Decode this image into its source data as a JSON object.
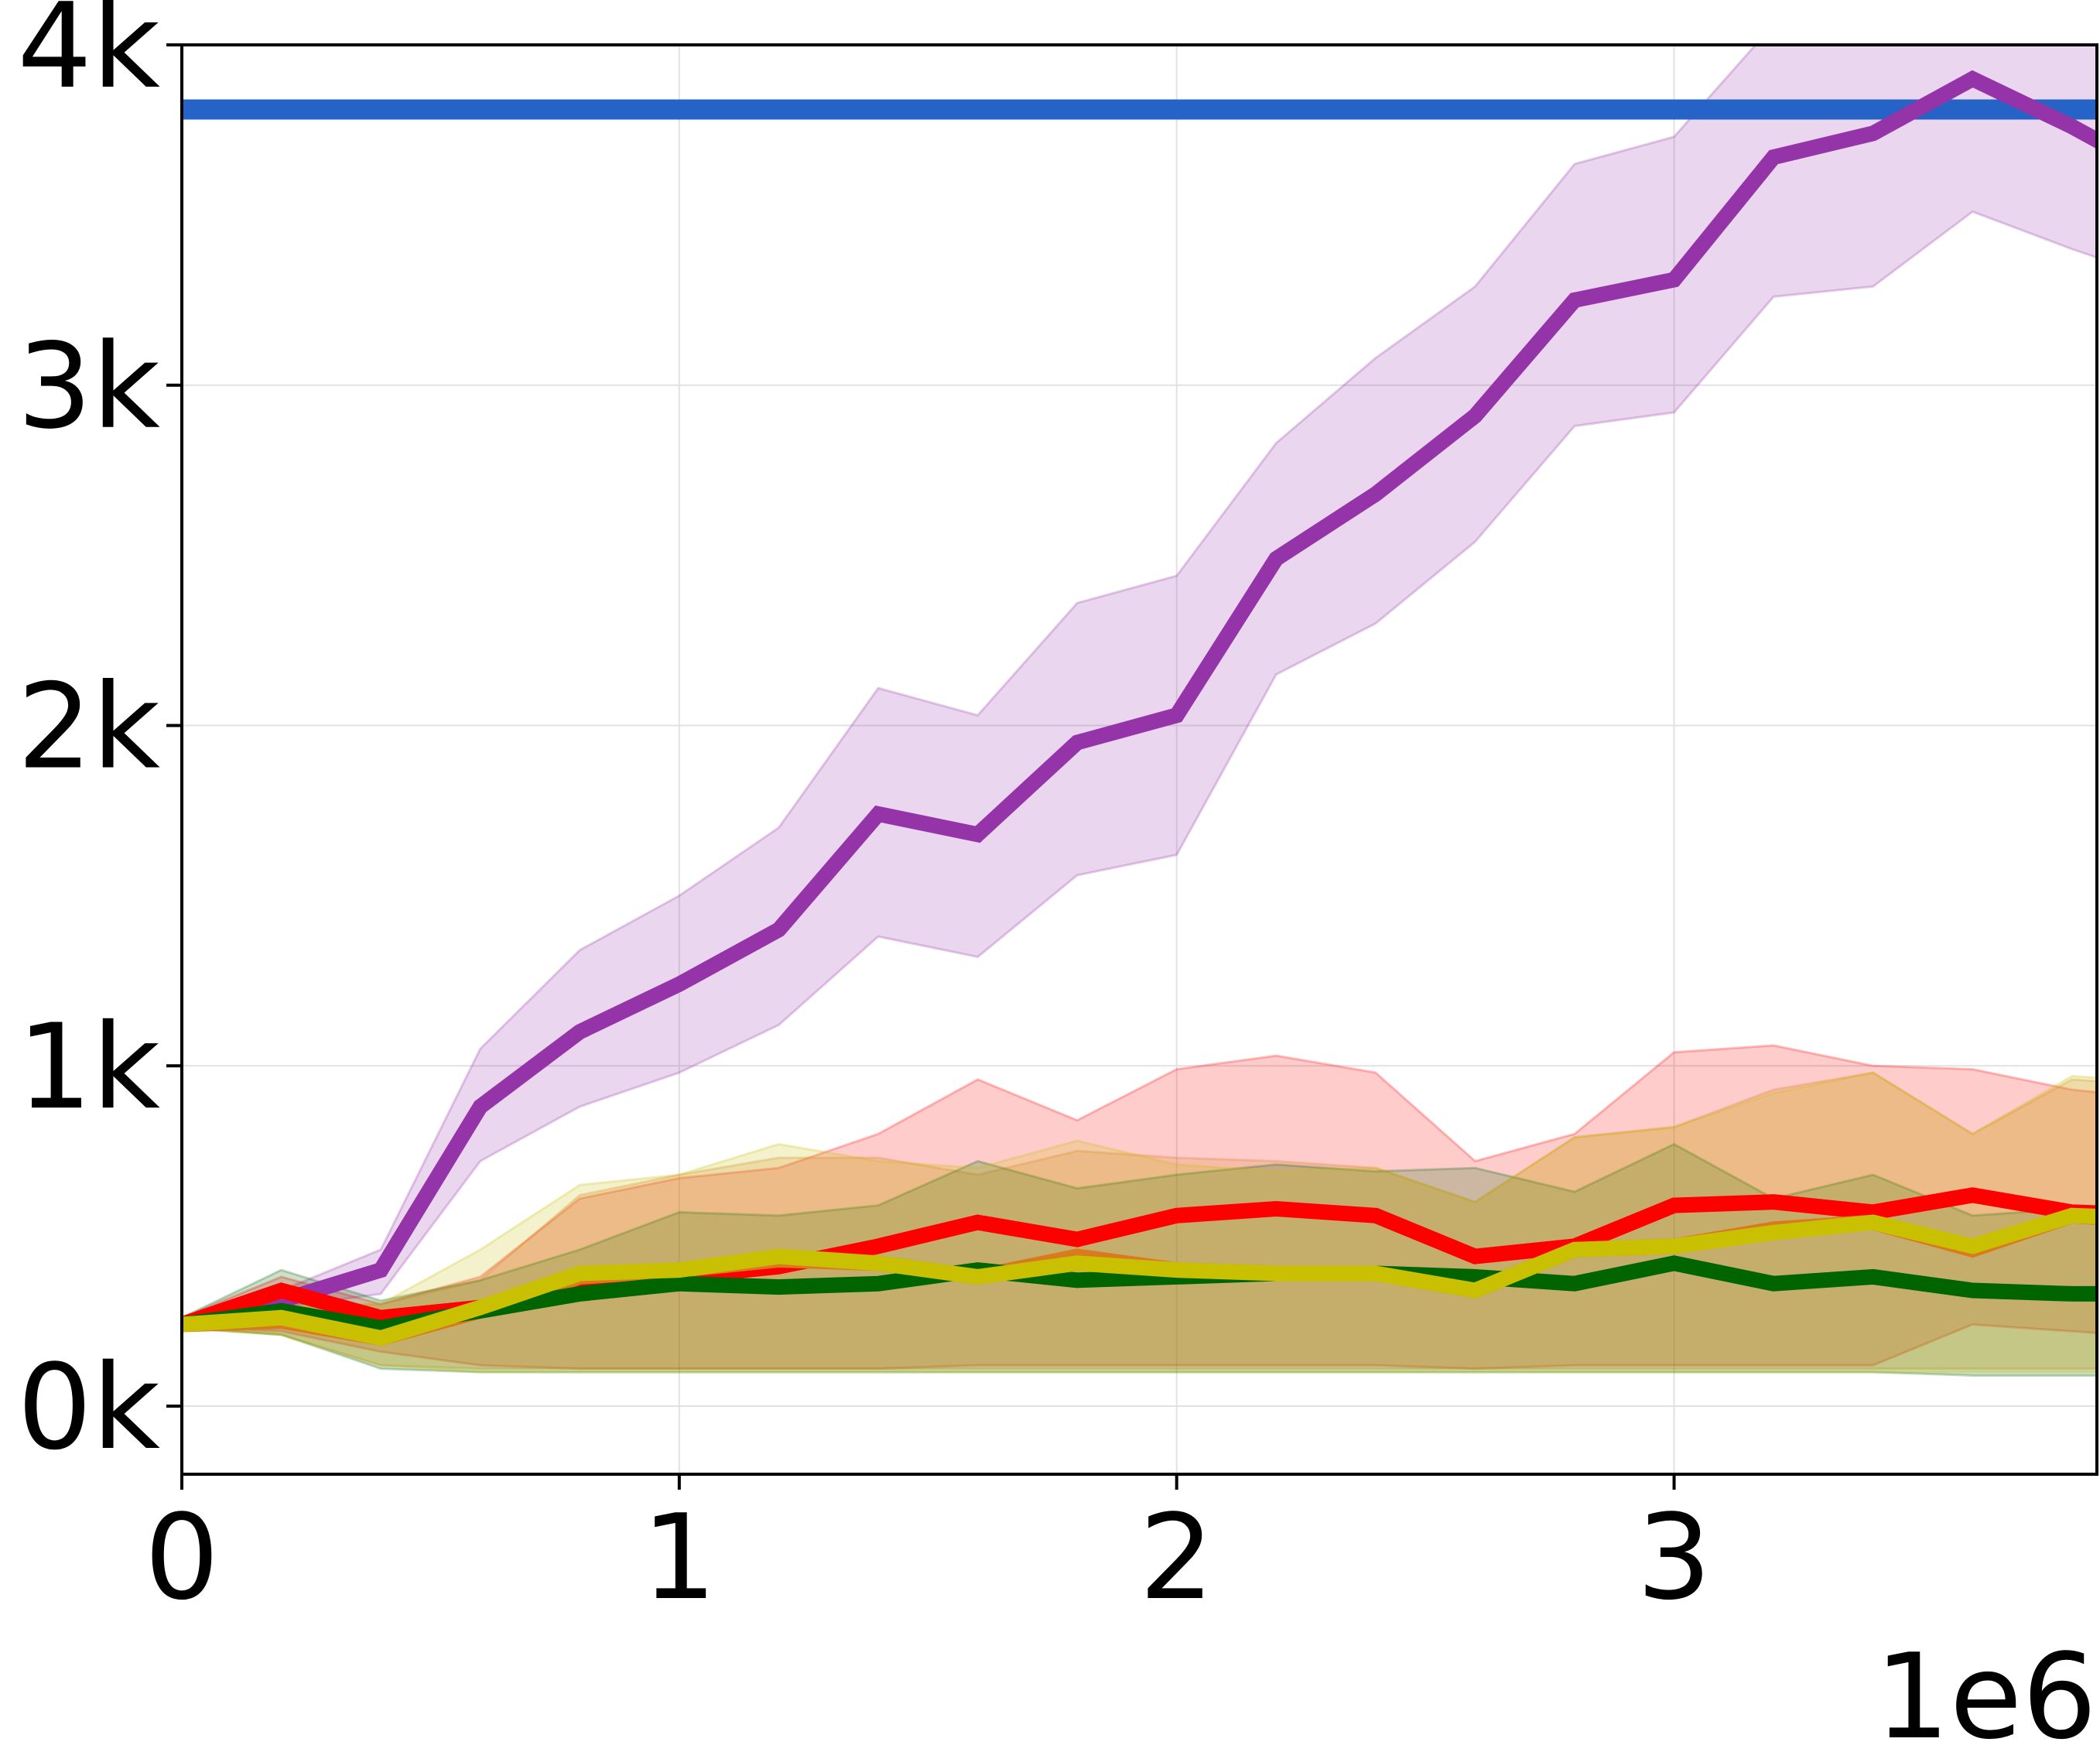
{
  "chart_data": {
    "type": "line",
    "title": "",
    "xlabel": "",
    "ylabel": "",
    "x_offset_label": "1e6",
    "xlim": [
      0,
      3.85
    ],
    "ylim": [
      -200,
      4000
    ],
    "grid": true,
    "x_ticks": [
      0,
      1,
      2,
      3
    ],
    "x_tick_labels": [
      "0",
      "1",
      "2",
      "3"
    ],
    "y_ticks": [
      0,
      1000,
      2000,
      3000,
      4000
    ],
    "y_tick_labels": [
      "0k",
      "1k",
      "2k",
      "3k",
      "4k"
    ],
    "x": [
      0,
      0.2,
      0.4,
      0.6,
      0.8,
      1.0,
      1.2,
      1.4,
      1.6,
      1.8,
      2.0,
      2.2,
      2.4,
      2.6,
      2.8,
      3.0,
      3.2,
      3.4,
      3.6,
      3.8,
      4.0
    ],
    "reference_line": {
      "y": 3810,
      "color": "#2563c7"
    },
    "series": [
      {
        "color": "#9533a8",
        "values": [
          240,
          310,
          400,
          880,
          1100,
          1240,
          1400,
          1740,
          1680,
          1950,
          2030,
          2490,
          2680,
          2910,
          3250,
          3310,
          3670,
          3740,
          3900,
          3760,
          3600
        ],
        "lower": [
          240,
          290,
          330,
          720,
          880,
          980,
          1120,
          1380,
          1320,
          1560,
          1620,
          2150,
          2300,
          2540,
          2880,
          2920,
          3260,
          3290,
          3510,
          3400,
          3300
        ],
        "upper": [
          250,
          340,
          460,
          1050,
          1340,
          1500,
          1700,
          2110,
          2030,
          2360,
          2440,
          2830,
          3080,
          3290,
          3650,
          3730,
          4060,
          4150,
          4320,
          4210,
          4100
        ]
      },
      {
        "color": "#ff0000",
        "values": [
          240,
          340,
          260,
          290,
          360,
          380,
          410,
          470,
          540,
          490,
          560,
          580,
          560,
          440,
          470,
          590,
          600,
          570,
          620,
          570,
          560
        ],
        "lower": [
          230,
          220,
          160,
          120,
          110,
          110,
          110,
          110,
          120,
          120,
          120,
          120,
          120,
          110,
          120,
          120,
          120,
          120,
          240,
          220,
          200
        ],
        "upper": [
          260,
          380,
          300,
          380,
          610,
          670,
          700,
          800,
          960,
          840,
          990,
          1030,
          980,
          720,
          800,
          1040,
          1060,
          1000,
          990,
          930,
          900
        ]
      },
      {
        "color": "#d97a1e",
        "values": [
          240,
          250,
          200,
          280,
          380,
          400,
          430,
          420,
          380,
          440,
          400,
          390,
          390,
          340,
          460,
          470,
          520,
          540,
          460,
          560,
          540
        ],
        "lower": [
          230,
          210,
          120,
          110,
          110,
          110,
          110,
          110,
          110,
          110,
          110,
          110,
          110,
          110,
          110,
          110,
          110,
          110,
          110,
          110,
          110
        ],
        "upper": [
          260,
          290,
          300,
          370,
          620,
          680,
          730,
          730,
          680,
          750,
          730,
          720,
          700,
          600,
          790,
          820,
          930,
          980,
          800,
          960,
          940
        ]
      },
      {
        "color": "#006400",
        "values": [
          240,
          280,
          230,
          280,
          330,
          360,
          350,
          360,
          400,
          370,
          380,
          390,
          390,
          380,
          360,
          420,
          360,
          380,
          340,
          330,
          330
        ],
        "lower": [
          230,
          210,
          110,
          100,
          100,
          100,
          100,
          100,
          100,
          100,
          100,
          100,
          100,
          100,
          100,
          100,
          100,
          100,
          90,
          90,
          90
        ],
        "upper": [
          260,
          400,
          310,
          370,
          460,
          570,
          560,
          590,
          720,
          640,
          680,
          710,
          690,
          700,
          630,
          770,
          610,
          680,
          560,
          580,
          560
        ]
      },
      {
        "color": "#c8c000",
        "values": [
          240,
          260,
          200,
          290,
          390,
          400,
          440,
          420,
          380,
          420,
          400,
          390,
          390,
          340,
          460,
          470,
          510,
          540,
          470,
          560,
          550
        ],
        "lower": [
          230,
          210,
          120,
          100,
          100,
          100,
          100,
          100,
          100,
          100,
          100,
          100,
          100,
          100,
          100,
          100,
          100,
          100,
          100,
          100,
          100
        ],
        "upper": [
          260,
          290,
          300,
          460,
          650,
          680,
          770,
          720,
          700,
          780,
          710,
          690,
          700,
          600,
          790,
          820,
          920,
          980,
          800,
          970,
          950
        ]
      }
    ]
  }
}
